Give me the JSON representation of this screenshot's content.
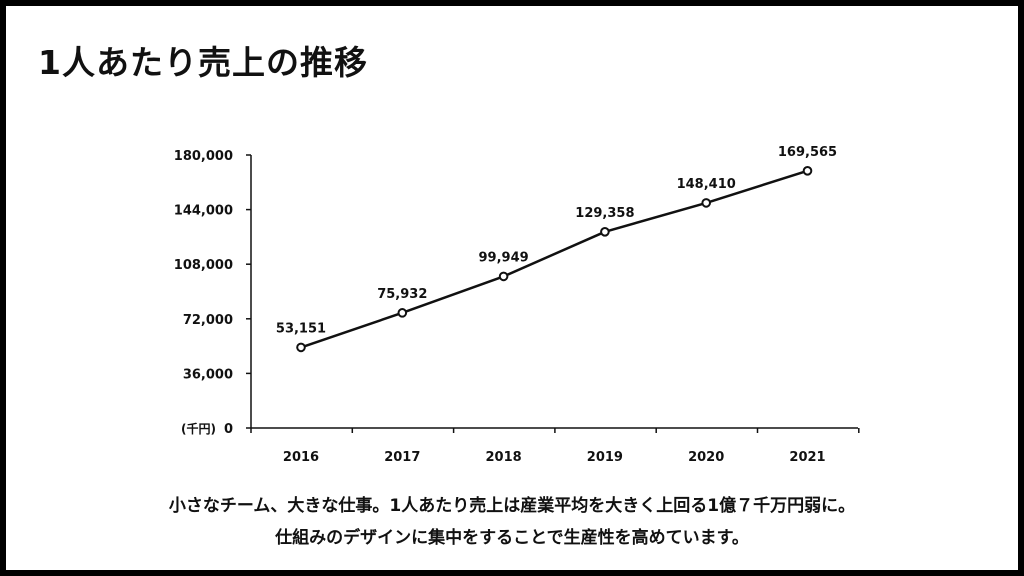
{
  "title": "1人あたり売上の推移",
  "caption": {
    "line1": "小さなチーム、大きな仕事。1人あたり売上は産業平均を大きく上回る1億７千万円弱に。",
    "line2": "仕組みのデザインに集中をすることで生産性を高めています。"
  },
  "colors": {
    "frame": "#000000",
    "background": "#ffffff",
    "line": "#111111"
  },
  "chart_data": {
    "type": "line",
    "title": "",
    "xlabel": "",
    "ylabel": "",
    "unit_label": "(千円)",
    "categories": [
      "2016",
      "2017",
      "2018",
      "2019",
      "2020",
      "2021"
    ],
    "series": [
      {
        "values": [
          53151,
          75932,
          99949,
          129358,
          148410,
          169565
        ],
        "labels": [
          "53,151",
          "75,932",
          "99,949",
          "129,358",
          "148,410",
          "169,565"
        ]
      }
    ],
    "ylim": [
      0,
      180000
    ],
    "yticks": [
      0,
      36000,
      72000,
      108000,
      144000,
      180000
    ],
    "ytick_labels": [
      "0",
      "36,000",
      "72,000",
      "108,000",
      "144,000",
      "180,000"
    ],
    "grid": false,
    "legend": "none",
    "markers": "open-circle"
  }
}
